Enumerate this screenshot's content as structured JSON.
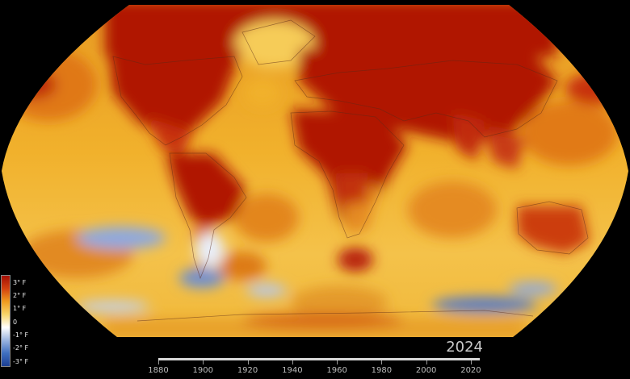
{
  "legend": {
    "ticks": [
      "3° F",
      "2° F",
      "1° F",
      "0",
      "-1° F",
      "-2° F",
      "-3° F"
    ],
    "colors": [
      "#a50f05",
      "#d3420f",
      "#ee9b1f",
      "#f6d56a",
      "#ffffff",
      "#9bb5e0",
      "#3f6fbf",
      "#1d3f94"
    ]
  },
  "year_label": "2024",
  "timeline": {
    "labels": [
      "1880",
      "1900",
      "1920",
      "1940",
      "1960",
      "1980",
      "2000",
      "2020"
    ],
    "progress": 1.0
  },
  "colors": {
    "ocean_base": "#f1b12c",
    "land_hot": "#b01206",
    "warm": "#d95a12",
    "cool": "#7f9ddb",
    "background": "#000000"
  }
}
